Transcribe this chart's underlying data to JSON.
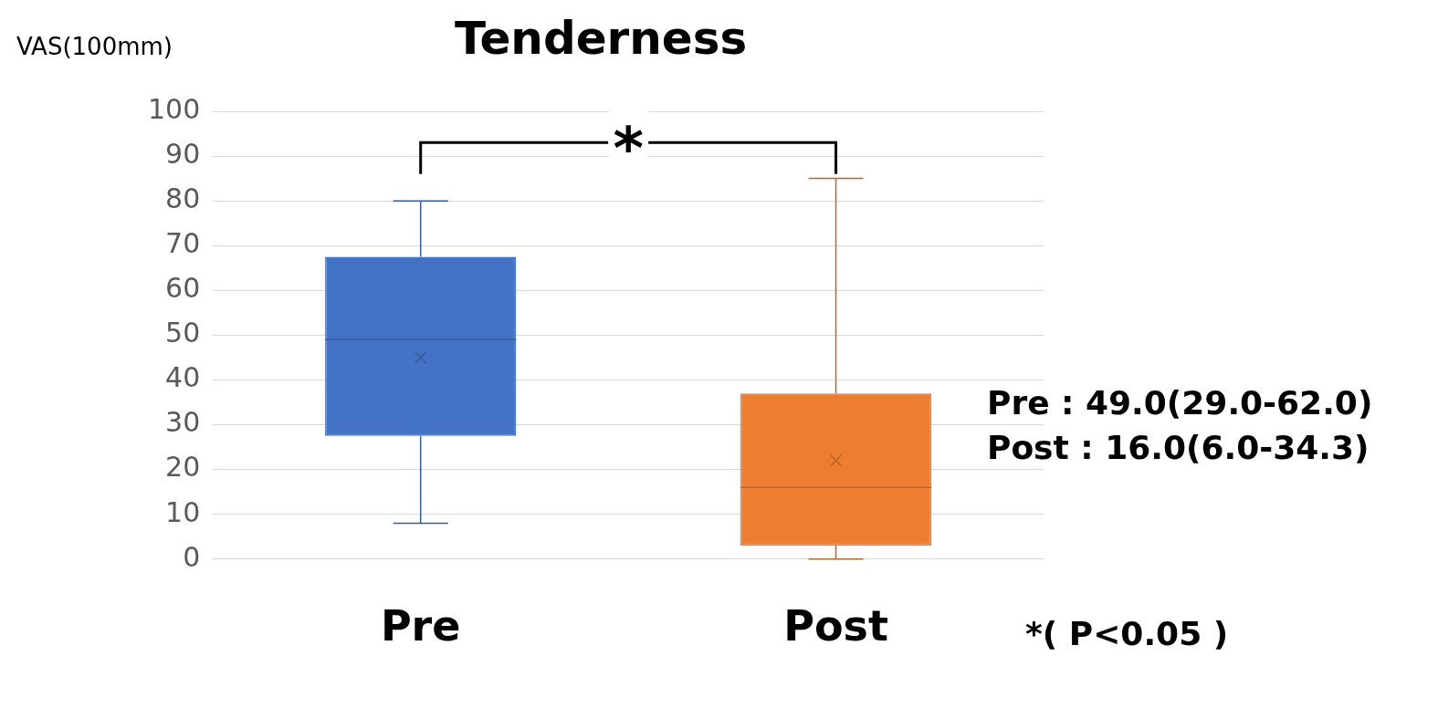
{
  "chart_data": {
    "type": "box",
    "title": "Tenderness",
    "ylabel": "VAS(100mm)",
    "categories": [
      "Pre",
      "Post"
    ],
    "boxes": [
      {
        "low": 8,
        "q1": 27.5,
        "median": 49,
        "q3": 67.5,
        "high": 80,
        "mean": 45
      },
      {
        "low": 0,
        "q1": 3,
        "median": 16,
        "q3": 37,
        "high": 85,
        "mean": 22
      }
    ],
    "colors": [
      "#4472c4",
      "#ed7d31"
    ],
    "ylim": [
      0,
      100
    ],
    "yticks": [
      0,
      10,
      20,
      30,
      40,
      50,
      60,
      70,
      80,
      90,
      100
    ],
    "grid": "y",
    "legend": false,
    "annotations": [
      "*",
      "Pre : 49.0(29.0-62.0)",
      "Post : 16.0(6.0-34.3)",
      "*( P<0.05 )"
    ]
  }
}
